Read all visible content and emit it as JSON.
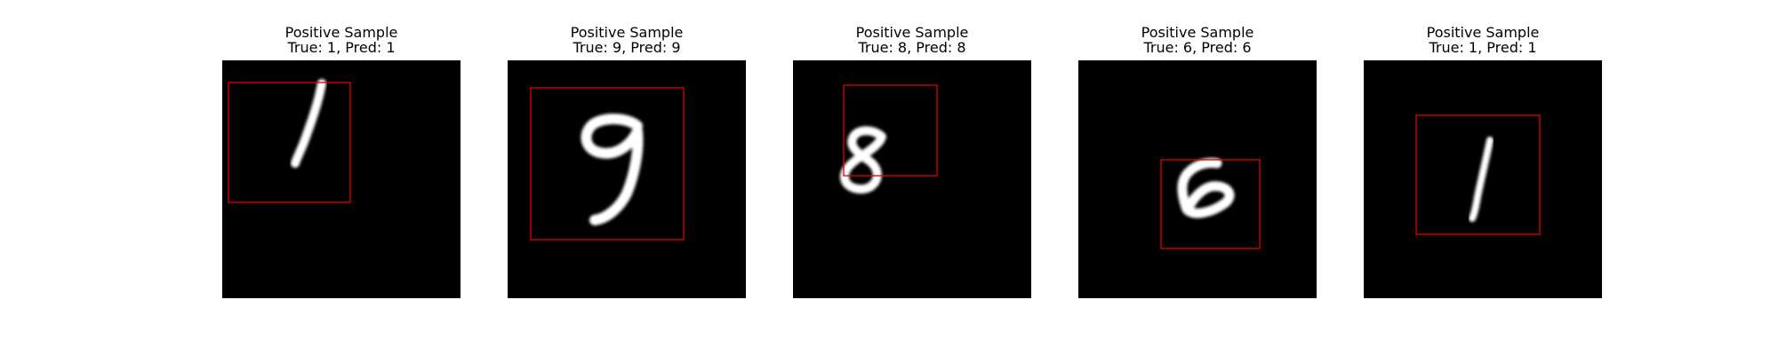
{
  "panels": [
    {
      "title": "Positive Sample",
      "subtitle": "True: 1, Pred: 1",
      "digit": "1",
      "box_color": "#e00000"
    },
    {
      "title": "Positive Sample",
      "subtitle": "True: 9, Pred: 9",
      "digit": "9",
      "box_color": "#e00000"
    },
    {
      "title": "Positive Sample",
      "subtitle": "True: 8, Pred: 8",
      "digit": "8",
      "box_color": "#e00000"
    },
    {
      "title": "Positive Sample",
      "subtitle": "True: 6, Pred: 6",
      "digit": "6",
      "box_color": "#e00000"
    },
    {
      "title": "Positive Sample",
      "subtitle": "True: 1, Pred: 1",
      "digit": "1",
      "box_color": "#e00000"
    }
  ]
}
